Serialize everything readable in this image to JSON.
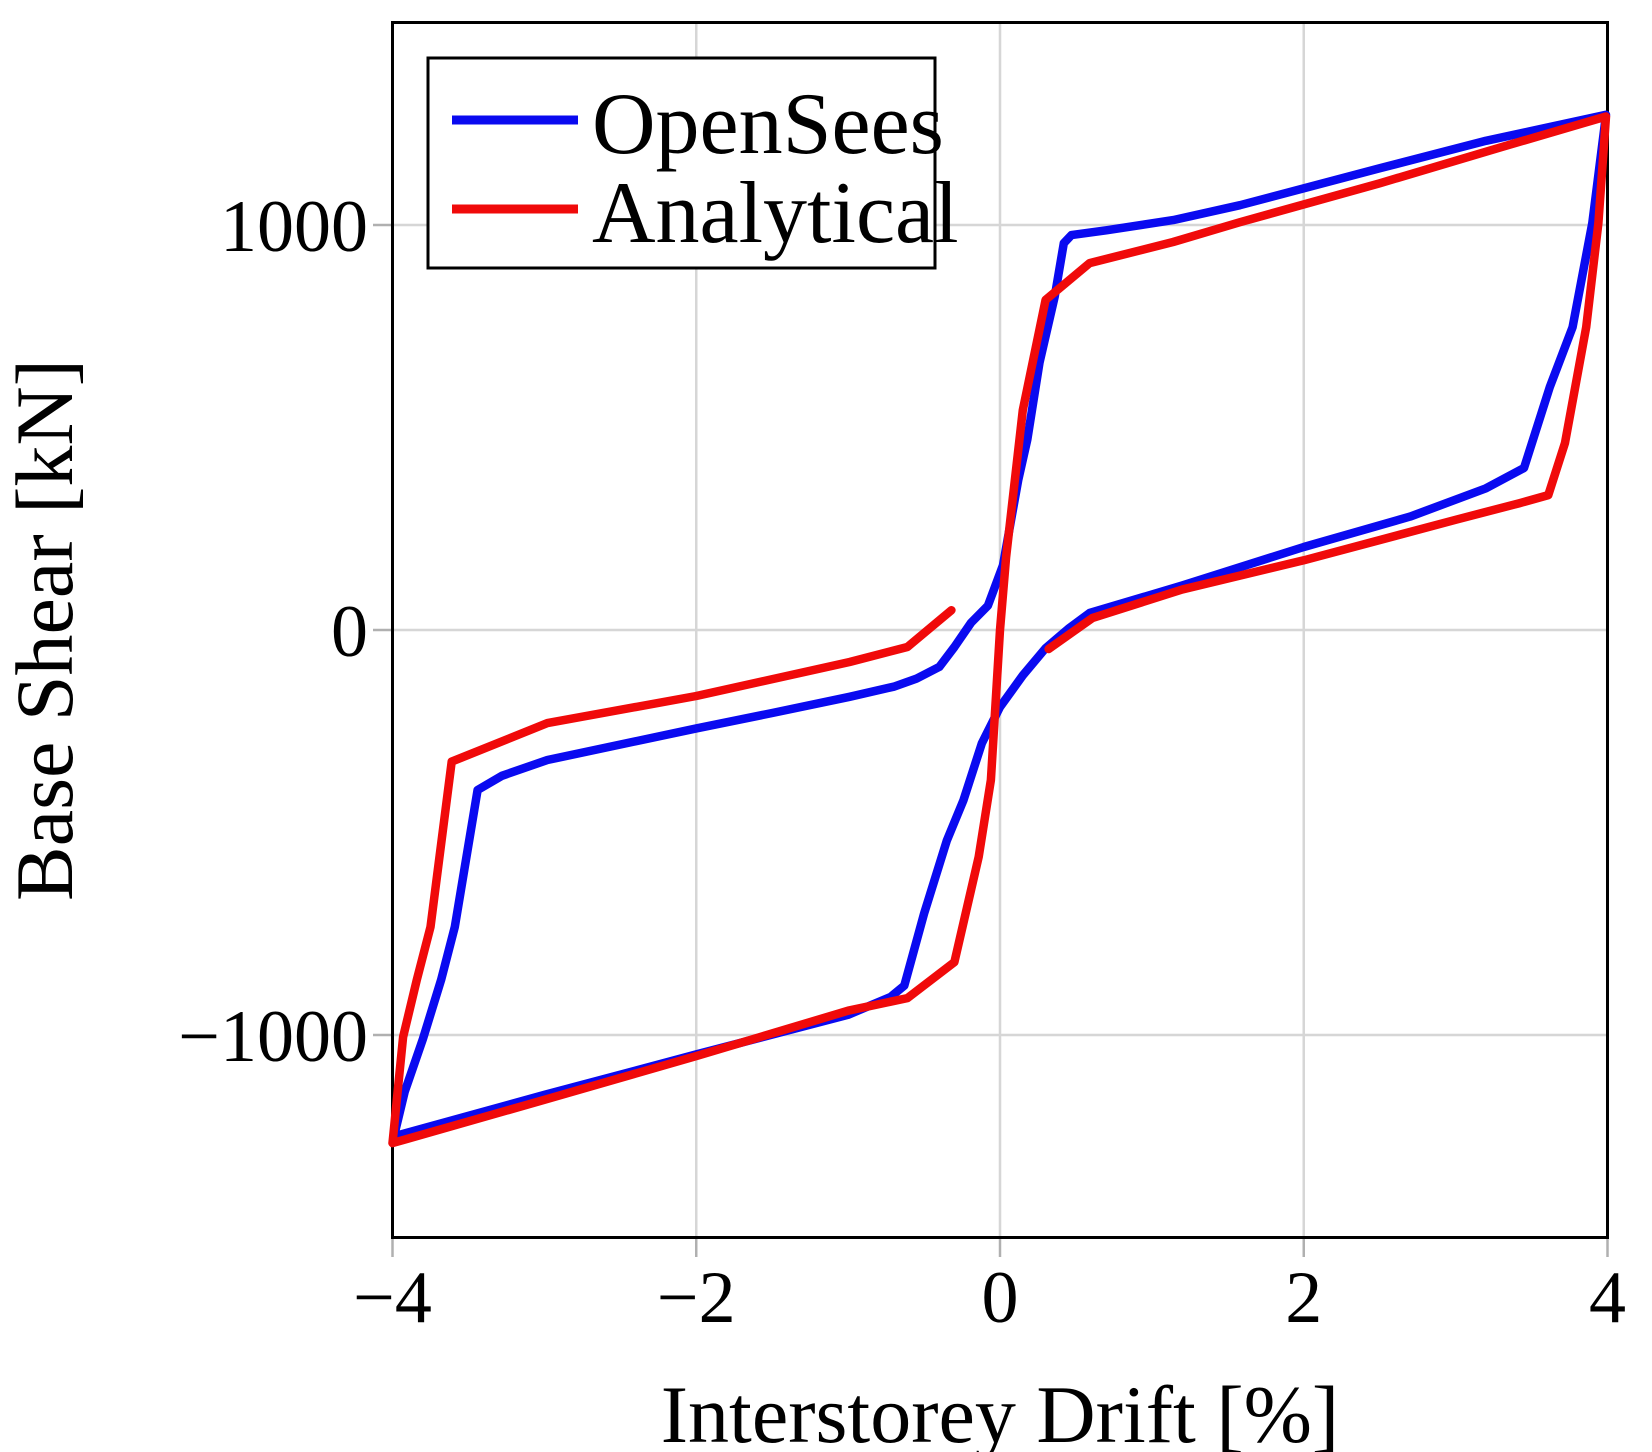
{
  "chart_data": {
    "type": "line",
    "title": "",
    "xlabel": "Interstorey Drift [%]",
    "ylabel": "Base Shear [kN]",
    "xlim": [
      -4,
      4
    ],
    "ylim": [
      -1500,
      1500
    ],
    "grid": true,
    "grid_color": "#d6d6d6",
    "frame_color": "#000000",
    "background": "#ffffff",
    "x_ticks": [
      {
        "value": -4,
        "label": "−4"
      },
      {
        "value": -2,
        "label": "−2"
      },
      {
        "value": 0,
        "label": "0"
      },
      {
        "value": 2,
        "label": "2"
      },
      {
        "value": 4,
        "label": "4"
      }
    ],
    "y_ticks": [
      {
        "value": -1000,
        "label": "−1000"
      },
      {
        "value": 0,
        "label": "0"
      },
      {
        "value": 1000,
        "label": "1000"
      }
    ],
    "legend": {
      "position": "top-left",
      "entries": [
        {
          "label": "OpenSees",
          "color": "#0a0af0"
        },
        {
          "label": "Analytical",
          "color": "#f00a0a"
        }
      ]
    },
    "series": [
      {
        "name": "OpenSees",
        "color": "#0a0af0",
        "closed": true,
        "points": [
          [
            -3.99,
            -1250
          ],
          [
            -3.0,
            -1148
          ],
          [
            -2.0,
            -1048
          ],
          [
            -1.0,
            -950
          ],
          [
            -0.72,
            -906
          ],
          [
            -0.63,
            -878
          ],
          [
            -0.5,
            -700
          ],
          [
            -0.35,
            -520
          ],
          [
            -0.24,
            -420
          ],
          [
            -0.12,
            -280
          ],
          [
            0.0,
            -190
          ],
          [
            0.15,
            -112
          ],
          [
            0.3,
            -45
          ],
          [
            0.45,
            3
          ],
          [
            0.59,
            42
          ],
          [
            1.2,
            110
          ],
          [
            2.0,
            205
          ],
          [
            2.7,
            280
          ],
          [
            3.2,
            350
          ],
          [
            3.45,
            400
          ],
          [
            3.62,
            600
          ],
          [
            3.77,
            748
          ],
          [
            3.9,
            1005
          ],
          [
            3.99,
            1272
          ],
          [
            3.2,
            1208
          ],
          [
            2.5,
            1140
          ],
          [
            1.58,
            1049
          ],
          [
            1.14,
            1012
          ],
          [
            0.7,
            987
          ],
          [
            0.47,
            975
          ],
          [
            0.42,
            955
          ],
          [
            0.36,
            823
          ],
          [
            0.26,
            660
          ],
          [
            0.18,
            470
          ],
          [
            0.12,
            370
          ],
          [
            0.02,
            160
          ],
          [
            -0.08,
            60
          ],
          [
            -0.19,
            18
          ],
          [
            -0.3,
            -42
          ],
          [
            -0.4,
            -91
          ],
          [
            -0.55,
            -120
          ],
          [
            -0.7,
            -140
          ],
          [
            -0.99,
            -165
          ],
          [
            -1.5,
            -205
          ],
          [
            -2.0,
            -243
          ],
          [
            -2.98,
            -321
          ],
          [
            -3.28,
            -360
          ],
          [
            -3.44,
            -395
          ],
          [
            -3.59,
            -733
          ],
          [
            -3.68,
            -864
          ],
          [
            -3.8,
            -1010
          ],
          [
            -3.92,
            -1140
          ],
          [
            -3.99,
            -1250
          ]
        ]
      },
      {
        "name": "Analytical",
        "color": "#f00a0a",
        "closed": false,
        "points": [
          [
            0.32,
            -47
          ],
          [
            0.61,
            30
          ],
          [
            1.2,
            100
          ],
          [
            2.0,
            172
          ],
          [
            3.0,
            272
          ],
          [
            3.42,
            313
          ],
          [
            3.61,
            333
          ],
          [
            3.72,
            462
          ],
          [
            3.86,
            748
          ],
          [
            3.94,
            1005
          ],
          [
            3.99,
            1268
          ],
          [
            3.3,
            1192
          ],
          [
            2.5,
            1103
          ],
          [
            1.58,
            1007
          ],
          [
            1.14,
            958
          ],
          [
            0.59,
            906
          ],
          [
            0.3,
            815
          ],
          [
            0.15,
            543
          ],
          [
            0.04,
            180
          ],
          [
            0.0,
            0
          ],
          [
            -0.06,
            -370
          ],
          [
            -0.14,
            -560
          ],
          [
            -0.3,
            -820
          ],
          [
            -0.61,
            -909
          ],
          [
            -1.0,
            -940
          ],
          [
            -2.0,
            -1052
          ],
          [
            -3.0,
            -1160
          ],
          [
            -4.0,
            -1267
          ],
          [
            -3.93,
            -1005
          ],
          [
            -3.84,
            -864
          ],
          [
            -3.75,
            -733
          ],
          [
            -3.61,
            -325
          ],
          [
            -2.98,
            -230
          ],
          [
            -2.0,
            -163
          ],
          [
            -0.99,
            -79
          ],
          [
            -0.61,
            -42
          ],
          [
            -0.32,
            49
          ]
        ]
      }
    ]
  }
}
